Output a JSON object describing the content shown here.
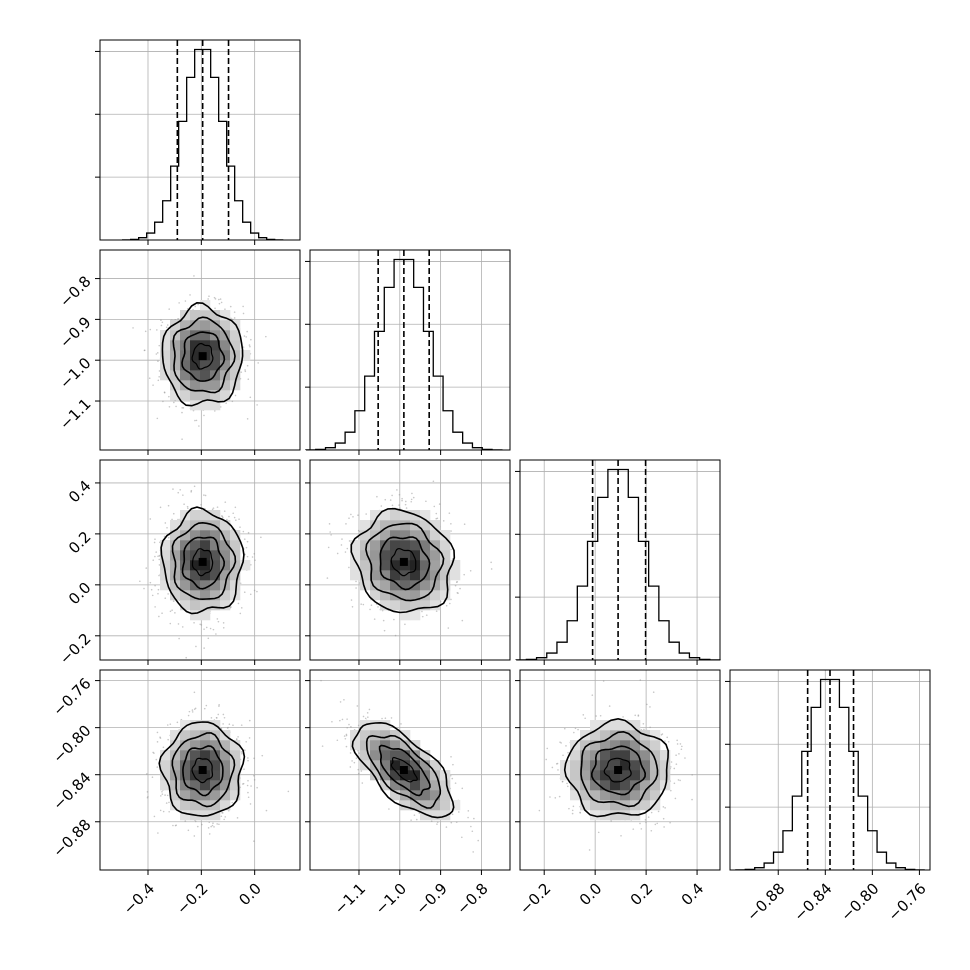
{
  "chart_data": {
    "type": "corner",
    "parameters": [
      {
        "index": 0,
        "range": [
          -0.58,
          0.17
        ],
        "ticks": [
          -0.4,
          -0.2,
          0.0
        ],
        "tick_labels": [
          "−0.4",
          "−0.2",
          "0.0"
        ],
        "quantiles": [
          -0.29,
          -0.195,
          -0.098
        ],
        "mean": -0.195,
        "sd": 0.075
      },
      {
        "index": 1,
        "range": [
          -1.22,
          -0.73
        ],
        "ticks": [
          -1.1,
          -1.0,
          -0.9,
          -0.8
        ],
        "tick_labels": [
          "−1.1",
          "−1.0",
          "−0.9",
          "−0.8"
        ],
        "quantiles": [
          -1.053,
          -0.99,
          -0.928
        ],
        "mean": -0.99,
        "sd": 0.06
      },
      {
        "index": 2,
        "range": [
          -0.295,
          0.49
        ],
        "ticks": [
          -0.2,
          0.0,
          0.2,
          0.4
        ],
        "tick_labels": [
          "−0.2",
          "0.0",
          "0.2",
          "0.4"
        ],
        "quantiles": [
          -0.01,
          0.09,
          0.198
        ],
        "mean": 0.09,
        "sd": 0.1
      },
      {
        "index": 3,
        "range": [
          -0.921,
          -0.751
        ],
        "ticks": [
          -0.88,
          -0.84,
          -0.8,
          -0.76
        ],
        "tick_labels": [
          "−0.88",
          "−0.84",
          "−0.80",
          "−0.76"
        ],
        "quantiles": [
          -0.855,
          -0.836,
          -0.816
        ],
        "mean": -0.836,
        "sd": 0.02
      }
    ],
    "histograms": [
      {
        "param": 0,
        "bins": 20,
        "ymax": 1.05
      },
      {
        "param": 1,
        "bins": 20,
        "ymax": 1.05
      },
      {
        "param": 2,
        "bins": 20,
        "ymax": 1.05
      },
      {
        "param": 3,
        "bins": 20,
        "ymax": 1.05
      }
    ],
    "pairs": [
      {
        "x": 0,
        "y": 1,
        "correlation": 0.0,
        "center": [
          -0.195,
          -0.99
        ]
      },
      {
        "x": 0,
        "y": 2,
        "correlation": 0.0,
        "center": [
          -0.195,
          0.09
        ]
      },
      {
        "x": 1,
        "y": 2,
        "correlation": -0.1,
        "center": [
          -0.99,
          0.09
        ]
      },
      {
        "x": 0,
        "y": 3,
        "correlation": 0.0,
        "center": [
          -0.195,
          -0.836
        ]
      },
      {
        "x": 1,
        "y": 3,
        "correlation": -0.65,
        "center": [
          -0.99,
          -0.836
        ]
      },
      {
        "x": 2,
        "y": 3,
        "correlation": 0.0,
        "center": [
          0.09,
          -0.836
        ]
      }
    ],
    "contour_levels_sigma": [
      0.5,
      1.0,
      1.5,
      2.0
    ],
    "grid": true,
    "quantile_line_style": "dashed",
    "colors": {
      "line": "#000000",
      "scatter": "#999999",
      "grid": "#b0b0b0"
    }
  }
}
